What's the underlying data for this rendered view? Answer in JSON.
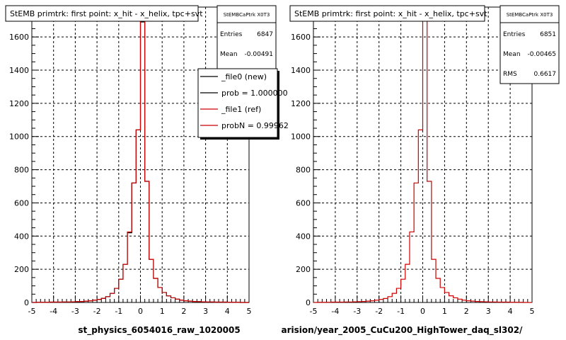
{
  "chart_data": [
    {
      "type": "histogram",
      "title": "StEMB primtrk: first point: x_hit - x_helix, tpc+svt",
      "xlabel": "st_physics_6054016_raw_1020005",
      "xlim": [
        -5,
        5
      ],
      "ylim": [
        0,
        1780
      ],
      "x_ticks": [
        -5,
        -4,
        -3,
        -2,
        -1,
        0,
        1,
        2,
        3,
        4,
        5
      ],
      "y_ticks": [
        0,
        200,
        400,
        600,
        800,
        1000,
        1200,
        1400,
        1600
      ],
      "grid": true,
      "stats": {
        "name": "StEMBCaPtrk X0T3",
        "rows": [
          {
            "label": "Entries",
            "value": "6847"
          },
          {
            "label": "Mean",
            "value": "-0.00491"
          }
        ]
      },
      "legend": {
        "placement": "top-right",
        "entries": [
          {
            "label": "_file0 (new)",
            "color": "#000000"
          },
          {
            "label": "prob = 1.000000",
            "color": "#000000"
          },
          {
            "label": "_file1 (ref)",
            "color": "#cc0000"
          },
          {
            "label": "probN = 0.99962",
            "color": "#cc0000"
          }
        ]
      },
      "bin_edges": [
        -5.0,
        -4.8,
        -4.6,
        -4.4,
        -4.2,
        -4.0,
        -3.8,
        -3.6,
        -3.4,
        -3.2,
        -3.0,
        -2.8,
        -2.6,
        -2.4,
        -2.2,
        -2.0,
        -1.8,
        -1.6,
        -1.4,
        -1.2,
        -1.0,
        -0.8,
        -0.6,
        -0.4,
        -0.2,
        0.0,
        0.2,
        0.4,
        0.6,
        0.8,
        1.0,
        1.2,
        1.4,
        1.6,
        1.8,
        2.0,
        2.2,
        2.4,
        2.6,
        2.8,
        3.0,
        3.2,
        3.4,
        3.6,
        3.8,
        4.0,
        4.2,
        4.4,
        4.6,
        4.8,
        5.0
      ],
      "series": [
        {
          "name": "_file0 (new)",
          "color": "#000000",
          "values": [
            0,
            1,
            1,
            1,
            2,
            2,
            2,
            3,
            3,
            4,
            5,
            6,
            8,
            10,
            14,
            18,
            25,
            35,
            55,
            85,
            140,
            230,
            420,
            720,
            1040,
            1690,
            730,
            260,
            145,
            90,
            60,
            40,
            28,
            20,
            14,
            10,
            8,
            6,
            5,
            4,
            3,
            3,
            2,
            2,
            2,
            1,
            1,
            1,
            0,
            0
          ]
        },
        {
          "name": "_file1 (ref)",
          "color": "#cc0000",
          "values": [
            0,
            1,
            1,
            1,
            2,
            2,
            2,
            3,
            3,
            4,
            5,
            6,
            8,
            10,
            14,
            18,
            24,
            35,
            55,
            85,
            140,
            230,
            425,
            720,
            1040,
            1695,
            730,
            260,
            145,
            90,
            60,
            40,
            28,
            20,
            14,
            10,
            8,
            6,
            5,
            4,
            3,
            3,
            2,
            2,
            2,
            1,
            1,
            1,
            0,
            0
          ]
        }
      ]
    },
    {
      "type": "histogram",
      "title": "StEMB primtrk: first point: x_hit - x_helix, tpc+svt",
      "xlabel": "arision/year_2005_CuCu200_HighTower_daq_sl302/",
      "xlim": [
        -5,
        5
      ],
      "ylim": [
        0,
        1780
      ],
      "x_ticks": [
        -5,
        -4,
        -3,
        -2,
        -1,
        0,
        1,
        2,
        3,
        4,
        5
      ],
      "y_ticks": [
        0,
        200,
        400,
        600,
        800,
        1000,
        1200,
        1400,
        1600
      ],
      "grid": true,
      "stats": {
        "name": "StEMBCaPtrk X0T3",
        "rows": [
          {
            "label": "Entries",
            "value": "6851"
          },
          {
            "label": "Mean",
            "value": "-0.00465"
          },
          {
            "label": "RMS",
            "value": "0.6617"
          }
        ]
      },
      "bin_edges": [
        -5.0,
        -4.8,
        -4.6,
        -4.4,
        -4.2,
        -4.0,
        -3.8,
        -3.6,
        -3.4,
        -3.2,
        -3.0,
        -2.8,
        -2.6,
        -2.4,
        -2.2,
        -2.0,
        -1.8,
        -1.6,
        -1.4,
        -1.2,
        -1.0,
        -0.8,
        -0.6,
        -0.4,
        -0.2,
        0.0,
        0.2,
        0.4,
        0.6,
        0.8,
        1.0,
        1.2,
        1.4,
        1.6,
        1.8,
        2.0,
        2.2,
        2.4,
        2.6,
        2.8,
        3.0,
        3.2,
        3.4,
        3.6,
        3.8,
        4.0,
        4.2,
        4.4,
        4.6,
        4.8,
        5.0
      ],
      "series": [
        {
          "name": "_file1 (ref)",
          "color": "#cc0000",
          "values": [
            0,
            1,
            1,
            1,
            2,
            2,
            2,
            3,
            3,
            4,
            5,
            6,
            8,
            10,
            14,
            18,
            24,
            35,
            55,
            85,
            140,
            230,
            425,
            720,
            1040,
            1695,
            730,
            260,
            145,
            90,
            60,
            40,
            28,
            20,
            14,
            10,
            8,
            6,
            5,
            4,
            3,
            3,
            2,
            2,
            2,
            1,
            1,
            1,
            0,
            0
          ]
        }
      ]
    }
  ]
}
